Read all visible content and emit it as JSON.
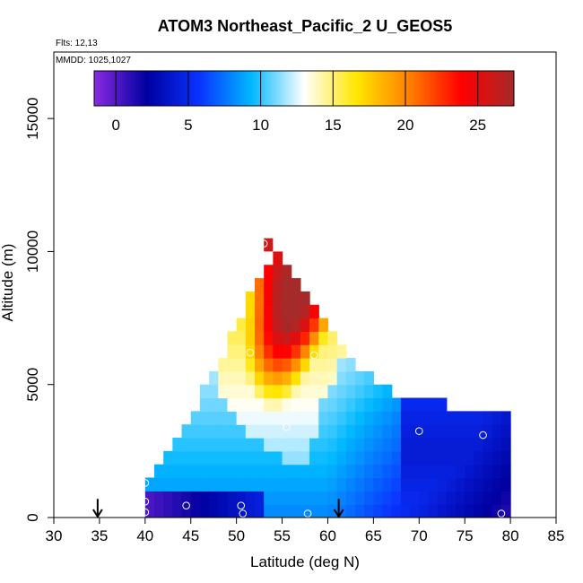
{
  "chart_data": {
    "type": "heatmap",
    "title": "ATOM3 Northeast_Pacific_2 U_GEOS5",
    "annotations": [
      "Flts: 12,13",
      "MMDD: 1025,1027"
    ],
    "xlabel": "Latitude (deg N)",
    "ylabel": "Altitude (m)",
    "xlim": [
      30,
      85
    ],
    "ylim": [
      0,
      17500
    ],
    "x_ticks": [
      "30",
      "35",
      "40",
      "45",
      "50",
      "55",
      "60",
      "65",
      "70",
      "75",
      "80",
      "85"
    ],
    "y_ticks": [
      "0",
      "5000",
      "10000",
      "15000"
    ],
    "grid": false,
    "colorbar": {
      "placement": "top",
      "min": -1.5,
      "max": 27.5,
      "ticks": [
        "0",
        "5",
        "10",
        "15",
        "20",
        "25"
      ],
      "colors": [
        "#8a2be2",
        "#0000a0",
        "#0a32ff",
        "#00b8ff",
        "#ffffff",
        "#ffe600",
        "#ff8000",
        "#ff0000",
        "#a52a2a"
      ]
    },
    "x_bin_deg": 1,
    "y_bin_m": 500,
    "envelope": [
      {
        "lat": 40,
        "alt_max": 1500
      },
      {
        "lat": 41,
        "alt_max": 2000
      },
      {
        "lat": 42,
        "alt_max": 2500
      },
      {
        "lat": 43,
        "alt_max": 3000
      },
      {
        "lat": 44,
        "alt_max": 3500
      },
      {
        "lat": 45,
        "alt_max": 4000
      },
      {
        "lat": 46,
        "alt_max": 5000
      },
      {
        "lat": 47,
        "alt_max": 5500
      },
      {
        "lat": 48,
        "alt_max": 6000
      },
      {
        "lat": 49,
        "alt_max": 7000
      },
      {
        "lat": 50,
        "alt_max": 7500
      },
      {
        "lat": 51,
        "alt_max": 8500
      },
      {
        "lat": 52,
        "alt_max": 9000
      },
      {
        "lat": 53,
        "alt_max": 9500
      },
      {
        "lat": 54,
        "alt_max": 10000
      },
      {
        "lat": 55,
        "alt_max": 9500
      },
      {
        "lat": 56,
        "alt_max": 9000
      },
      {
        "lat": 57,
        "alt_max": 8500
      },
      {
        "lat": 58,
        "alt_max": 8000
      },
      {
        "lat": 59,
        "alt_max": 7500
      },
      {
        "lat": 60,
        "alt_max": 7000
      },
      {
        "lat": 61,
        "alt_max": 6500
      },
      {
        "lat": 62,
        "alt_max": 6000
      },
      {
        "lat": 63,
        "alt_max": 5500
      },
      {
        "lat": 64,
        "alt_max": 5500
      },
      {
        "lat": 65,
        "alt_max": 5000
      },
      {
        "lat": 66,
        "alt_max": 5000
      },
      {
        "lat": 67,
        "alt_max": 4500
      },
      {
        "lat": 68,
        "alt_max": 4500
      },
      {
        "lat": 69,
        "alt_max": 4500
      },
      {
        "lat": 70,
        "alt_max": 4500
      },
      {
        "lat": 71,
        "alt_max": 4500
      },
      {
        "lat": 72,
        "alt_max": 4500
      },
      {
        "lat": 73,
        "alt_max": 4000
      },
      {
        "lat": 74,
        "alt_max": 4000
      },
      {
        "lat": 75,
        "alt_max": 4000
      },
      {
        "lat": 76,
        "alt_max": 4000
      },
      {
        "lat": 77,
        "alt_max": 4000
      },
      {
        "lat": 78,
        "alt_max": 4000
      },
      {
        "lat": 79,
        "alt_max": 4000
      }
    ],
    "top_cell": {
      "lat": 53,
      "alt_min": 10000,
      "alt_max": 10500,
      "u": 26
    },
    "field_control_points": {
      "core_lat_min": 54,
      "core_lat_max": 57,
      "core_alt": 8000,
      "core_u": 26,
      "surface_low_lat_range": [
        40,
        52
      ],
      "surface_low_u": 0,
      "north_low_lat": 72,
      "north_low_u": 4,
      "north_mid_alt": 2000
    },
    "sample_points": [
      {
        "lat": 40,
        "alt": 1300
      },
      {
        "lat": 40,
        "alt": 600
      },
      {
        "lat": 40,
        "alt": 200
      },
      {
        "lat": 44.5,
        "alt": 450
      },
      {
        "lat": 50.5,
        "alt": 450
      },
      {
        "lat": 50.7,
        "alt": 150
      },
      {
        "lat": 51.5,
        "alt": 6200
      },
      {
        "lat": 53,
        "alt": 10300
      },
      {
        "lat": 55.5,
        "alt": 3400
      },
      {
        "lat": 57.8,
        "alt": 150
      },
      {
        "lat": 58.5,
        "alt": 6100
      },
      {
        "lat": 70,
        "alt": 3250
      },
      {
        "lat": 79.3,
        "alt": 4200
      },
      {
        "lat": 79,
        "alt": 150
      },
      {
        "lat": 77,
        "alt": 3100
      }
    ],
    "flight_arrows": [
      {
        "lat": 34.8,
        "alt_from": 700,
        "alt_to": 0
      },
      {
        "lat": 61.2,
        "alt_from": 700,
        "alt_to": 0
      }
    ]
  }
}
